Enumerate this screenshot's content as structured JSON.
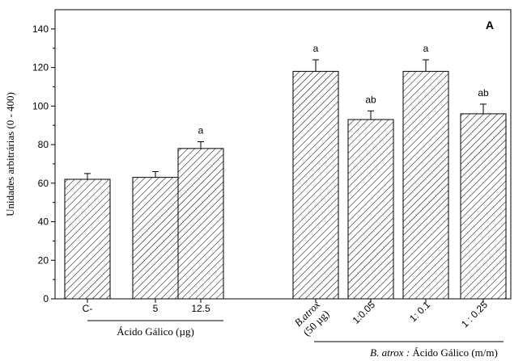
{
  "chart_data": {
    "type": "bar",
    "panel_label": "A",
    "ylabel": "Unidades arbitrárias (0 - 400)",
    "ylim": [
      0,
      150
    ],
    "yticks": [
      0,
      20,
      40,
      60,
      80,
      100,
      120,
      140
    ],
    "grid": false,
    "bar_pattern": "diagonal-hatch",
    "colors": {
      "stroke": "#000000",
      "fill": "#ffffff"
    },
    "categories": [
      "C-",
      "5",
      "12.5",
      "B.atrox (50 µg)",
      "1:0.05",
      "1: 0.1",
      "1 : 0.25"
    ],
    "category_labels": [
      {
        "lines": [
          "C-"
        ],
        "italic": false
      },
      {
        "lines": [
          "5"
        ],
        "italic": false
      },
      {
        "lines": [
          "12.5"
        ],
        "italic": false
      },
      {
        "lines": [
          "B.atrox",
          "(50 µg)"
        ],
        "italic": true
      },
      {
        "lines": [
          "1:0.05"
        ],
        "italic": false
      },
      {
        "lines": [
          "1: 0.1"
        ],
        "italic": false
      },
      {
        "lines": [
          "1 : 0.25"
        ],
        "italic": false
      }
    ],
    "values": [
      62,
      63,
      78,
      118,
      93,
      118,
      96
    ],
    "errors": [
      3,
      3,
      3.5,
      6,
      4.5,
      6,
      5
    ],
    "significance": [
      "",
      "",
      "a",
      "a",
      "ab",
      "a",
      "ab"
    ],
    "group_labels": [
      {
        "text": "Ácido Gálico (µg)"
      },
      {
        "text_italic": "B. atrox :",
        "text_plain": " Ácido Gálico (m/m)"
      }
    ]
  }
}
